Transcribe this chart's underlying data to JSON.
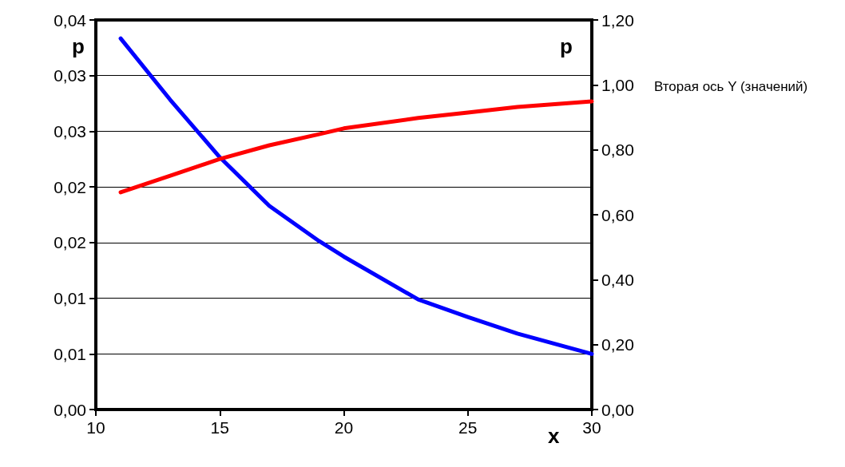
{
  "chart_data": {
    "type": "line",
    "xlabel": "x",
    "ylabel": "p",
    "y2label": "p",
    "annotations": [
      "Вторая ось Y (значений)"
    ],
    "x": [
      11,
      13,
      15,
      17,
      19,
      20,
      23,
      25,
      27,
      30
    ],
    "series": [
      {
        "color": "#0000ff",
        "values": [
          0.0381,
          0.0318,
          0.0259,
          0.0209,
          0.0173,
          0.0157,
          0.0113,
          0.0095,
          0.0078,
          0.0057
        ]
      },
      {
        "color": "#ff0000",
        "axis": "y2",
        "values": [
          0.669,
          0.72,
          0.772,
          0.814,
          0.848,
          0.866,
          0.898,
          0.915,
          0.932,
          0.949
        ]
      }
    ],
    "xlim": [
      10,
      30
    ],
    "xticks": [
      10,
      15,
      20,
      25,
      30
    ],
    "ylim": [
      0,
      0.04
    ],
    "yticks": [
      {
        "value": 0,
        "label": "0,00"
      },
      {
        "value": 0.00571,
        "label": "0,01"
      },
      {
        "value": 0.01143,
        "label": "0,01"
      },
      {
        "value": 0.01714,
        "label": "0,02"
      },
      {
        "value": 0.02286,
        "label": "0,02"
      },
      {
        "value": 0.02857,
        "label": "0,03"
      },
      {
        "value": 0.03429,
        "label": "0,03"
      },
      {
        "value": 0.04,
        "label": "0,04"
      }
    ],
    "y2lim": [
      0,
      1.2
    ],
    "y2ticks": [
      {
        "value": 0,
        "label": "0,00"
      },
      {
        "value": 0.2,
        "label": "0,20"
      },
      {
        "value": 0.4,
        "label": "0,40"
      },
      {
        "value": 0.6,
        "label": "0,60"
      },
      {
        "value": 0.8,
        "label": "0,80"
      },
      {
        "value": 1,
        "label": "1,00"
      },
      {
        "value": 1.2,
        "label": "1,20"
      }
    ],
    "grid": "y",
    "marker": "none",
    "line_style": "solid"
  }
}
